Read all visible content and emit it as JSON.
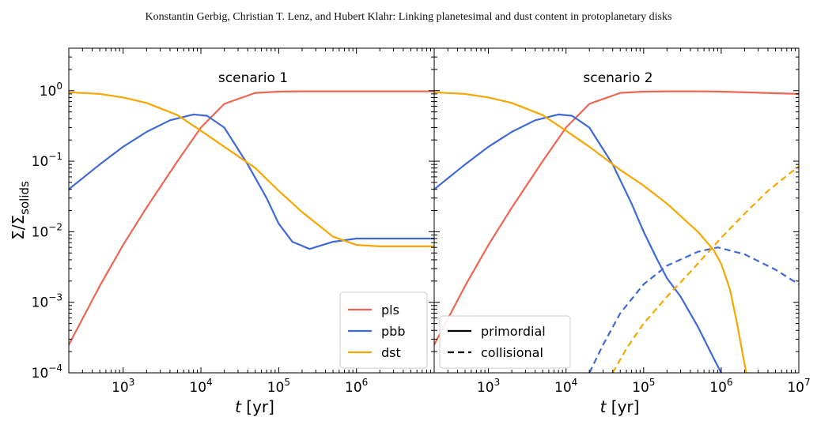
{
  "header": {
    "running_title": "Konstantin Gerbig, Christian T. Lenz, and Hubert Klahr: Linking planetesimal and dust content in protoplanetary disks"
  },
  "chart_data": [
    {
      "type": "line",
      "title": "scenario 1",
      "xlabel": "t [yr]",
      "ylabel": "Σ/Σ_solids",
      "xscale": "log",
      "yscale": "log",
      "xlim": [
        200,
        10000000
      ],
      "ylim": [
        0.0001,
        4
      ],
      "x_ticks": [
        "10^3",
        "10^4",
        "10^5",
        "10^6"
      ],
      "y_ticks": [
        "10^0",
        "10^-1",
        "10^-2",
        "10^-3",
        "10^-4"
      ],
      "legend": {
        "placement": "lower-right",
        "entries": [
          "pls",
          "pbb",
          "dst"
        ]
      },
      "series": [
        {
          "name": "pls",
          "color": "#ee6650",
          "style": "solid",
          "x": [
            200,
            500,
            1000,
            2000,
            5000,
            10000,
            20000,
            50000,
            100000,
            200000,
            500000,
            1000000,
            10000000
          ],
          "y": [
            0.00025,
            0.0017,
            0.0065,
            0.022,
            0.1,
            0.3,
            0.65,
            0.93,
            0.97,
            0.98,
            0.98,
            0.98,
            0.98
          ]
        },
        {
          "name": "pbb",
          "color": "#3f69d8",
          "style": "solid",
          "x": [
            200,
            500,
            1000,
            2000,
            4000,
            8000,
            12000,
            20000,
            40000,
            70000,
            100000,
            150000,
            250000,
            500000,
            1000000,
            10000000
          ],
          "y": [
            0.04,
            0.09,
            0.16,
            0.26,
            0.38,
            0.46,
            0.44,
            0.3,
            0.09,
            0.03,
            0.013,
            0.0072,
            0.0057,
            0.0072,
            0.008,
            0.008
          ]
        },
        {
          "name": "dst",
          "color": "#f7a700",
          "style": "solid",
          "x": [
            200,
            500,
            1000,
            2000,
            5000,
            10000,
            20000,
            50000,
            100000,
            200000,
            500000,
            1000000,
            2000000,
            10000000
          ],
          "y": [
            0.95,
            0.9,
            0.8,
            0.67,
            0.45,
            0.27,
            0.16,
            0.08,
            0.038,
            0.019,
            0.0085,
            0.0065,
            0.0062,
            0.0062
          ]
        }
      ]
    },
    {
      "type": "line",
      "title": "scenario 2",
      "xlabel": "t [yr]",
      "xscale": "log",
      "yscale": "log",
      "xlim": [
        200,
        10000000
      ],
      "ylim": [
        0.0001,
        4
      ],
      "x_ticks": [
        "10^3",
        "10^4",
        "10^5",
        "10^6",
        "10^7"
      ],
      "legend": {
        "placement": "lower-left",
        "entries": [
          "primordial",
          "collisional"
        ]
      },
      "series": [
        {
          "name": "pls",
          "color": "#ee6650",
          "style": "solid",
          "x": [
            200,
            500,
            1000,
            2000,
            5000,
            10000,
            20000,
            50000,
            100000,
            200000,
            500000,
            1000000,
            10000000
          ],
          "y": [
            0.00025,
            0.0017,
            0.0065,
            0.022,
            0.1,
            0.3,
            0.65,
            0.93,
            0.97,
            0.98,
            0.98,
            0.97,
            0.9
          ]
        },
        {
          "name": "pbb",
          "color": "#3f69d8",
          "style": "solid",
          "x": [
            200,
            500,
            1000,
            2000,
            4000,
            8000,
            12000,
            20000,
            40000,
            70000,
            100000,
            150000,
            200000,
            300000,
            500000,
            800000,
            1000000
          ],
          "y": [
            0.04,
            0.09,
            0.16,
            0.26,
            0.38,
            0.46,
            0.44,
            0.3,
            0.09,
            0.025,
            0.01,
            0.004,
            0.0022,
            0.0012,
            0.00045,
            0.00016,
            0.0001
          ]
        },
        {
          "name": "dst",
          "color": "#f7a700",
          "style": "solid",
          "x": [
            200,
            500,
            1000,
            2000,
            5000,
            10000,
            20000,
            50000,
            100000,
            200000,
            500000,
            800000,
            1000000,
            1300000,
            1600000,
            1900000,
            2100000
          ],
          "y": [
            0.95,
            0.9,
            0.8,
            0.67,
            0.45,
            0.27,
            0.16,
            0.075,
            0.045,
            0.025,
            0.01,
            0.0055,
            0.0035,
            0.0015,
            0.0005,
            0.00018,
            0.0001
          ]
        },
        {
          "name": "pbb",
          "color": "#3f69d8",
          "style": "dashed",
          "x": [
            20000,
            30000,
            50000,
            100000,
            200000,
            500000,
            900000,
            2000000,
            5000000,
            10000000
          ],
          "y": [
            0.0001,
            0.00025,
            0.0007,
            0.0018,
            0.0033,
            0.0052,
            0.006,
            0.0048,
            0.0029,
            0.0018
          ]
        },
        {
          "name": "dst",
          "color": "#f7a700",
          "style": "dashed",
          "x": [
            40000,
            60000,
            100000,
            200000,
            400000,
            1000000,
            2000000,
            4000000,
            10000000
          ],
          "y": [
            0.0001,
            0.00022,
            0.0005,
            0.0012,
            0.0027,
            0.0082,
            0.018,
            0.038,
            0.085
          ]
        }
      ]
    }
  ]
}
